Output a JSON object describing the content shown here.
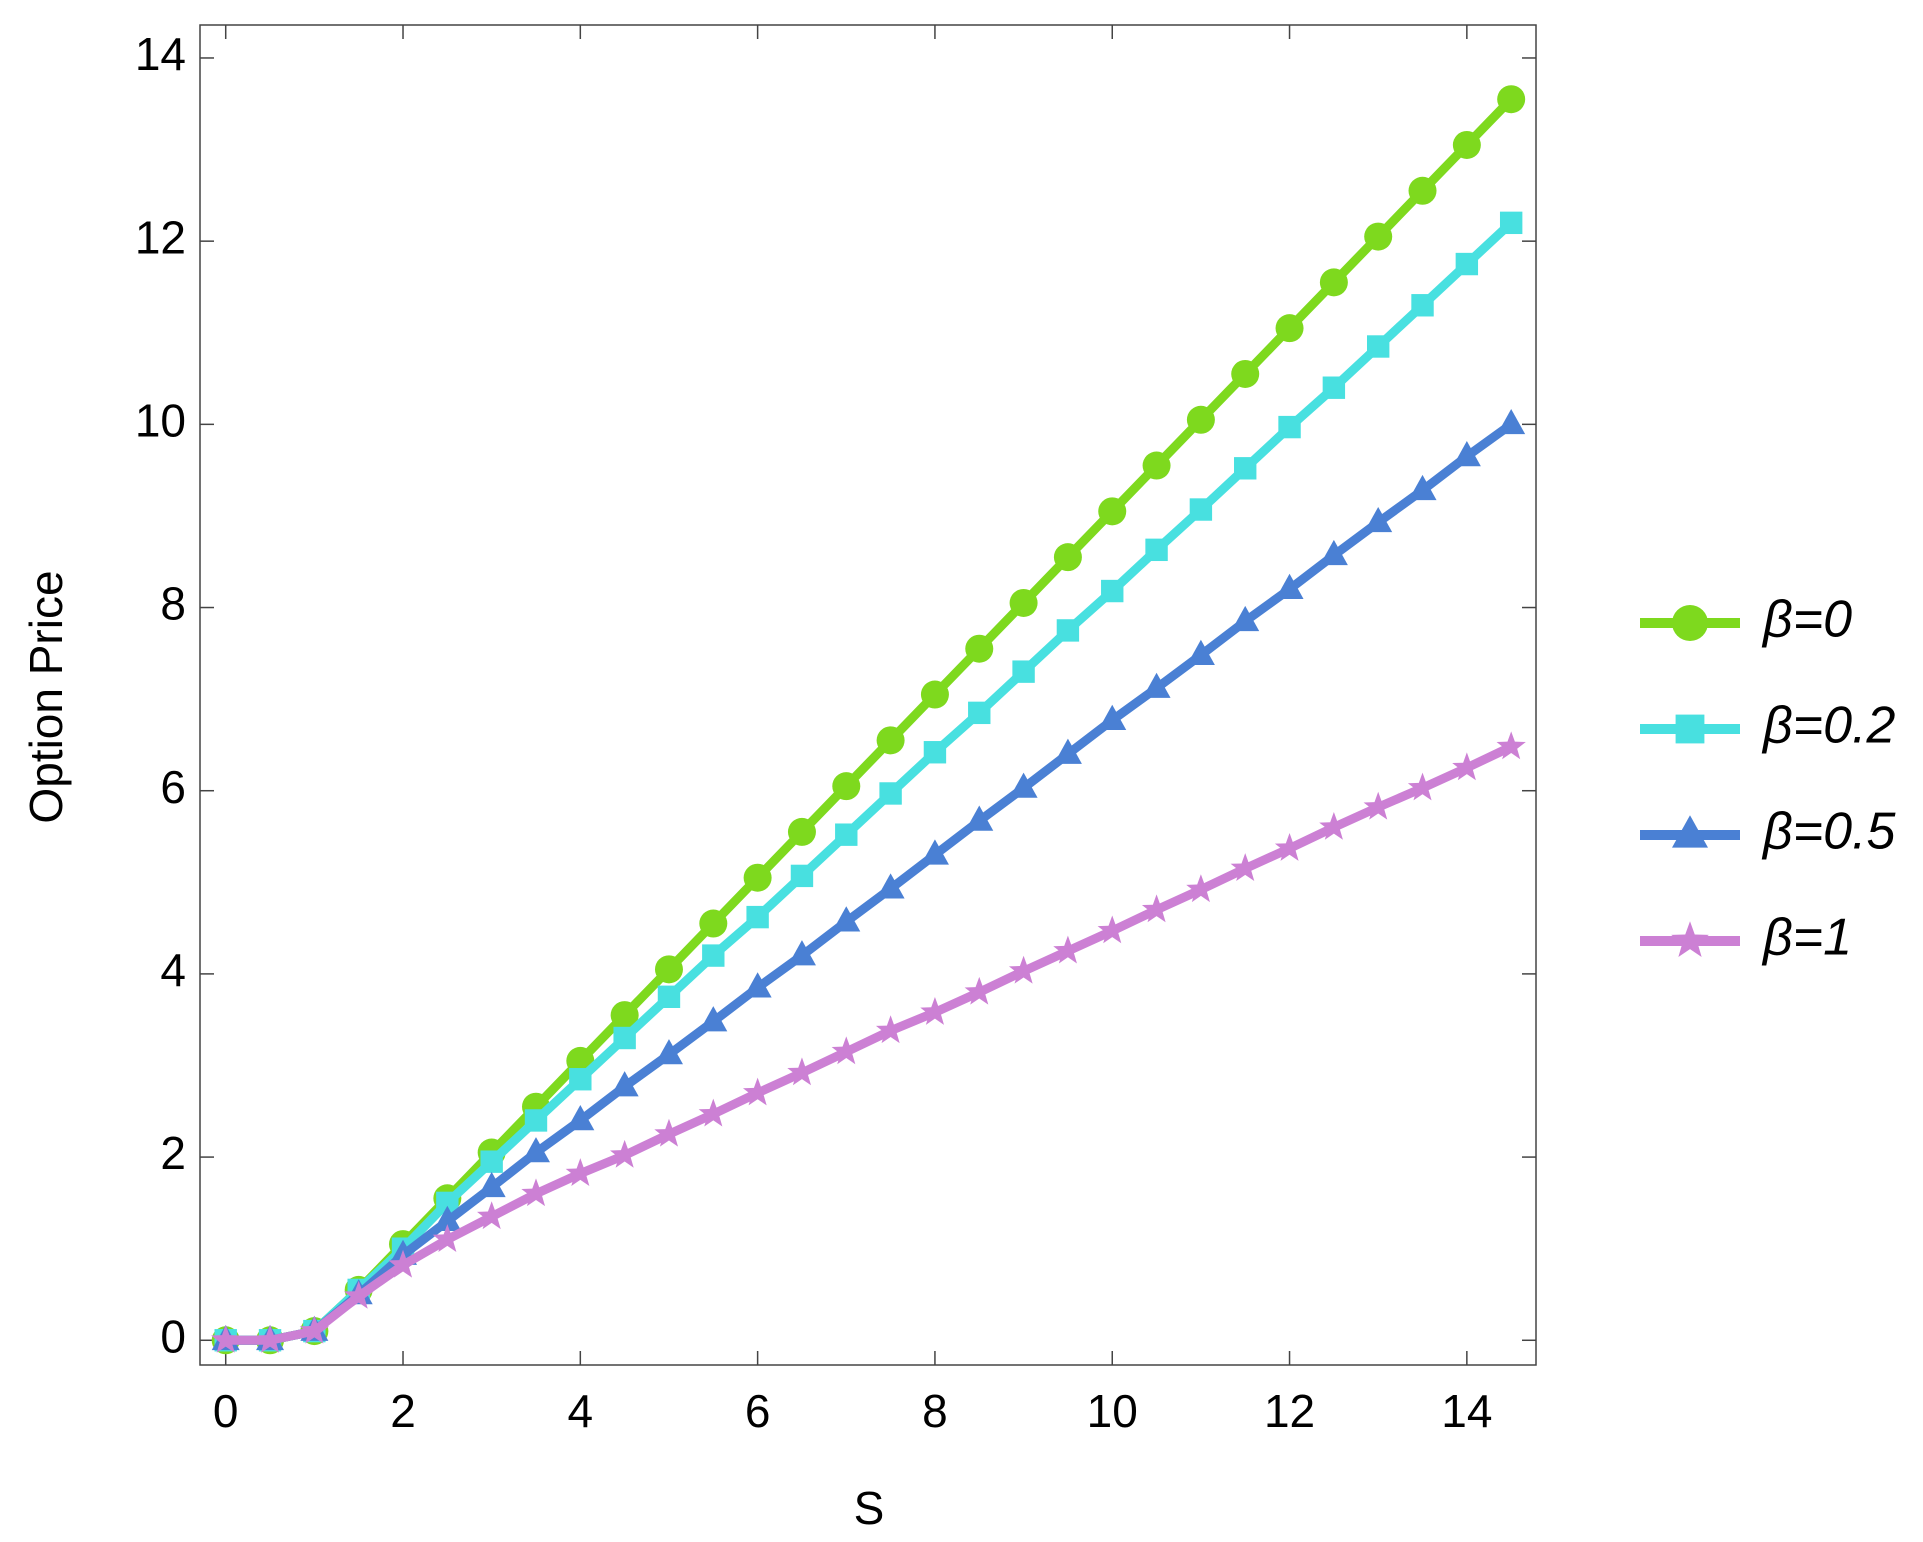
{
  "chart_data": {
    "type": "line",
    "x_label": "S",
    "y_label": "Option Price",
    "x": [
      0,
      0.5,
      1,
      1.5,
      2,
      2.5,
      3,
      3.5,
      4,
      4.5,
      5,
      5.5,
      6,
      6.5,
      7,
      7.5,
      8,
      8.5,
      9,
      9.5,
      10,
      10.5,
      11,
      11.5,
      12,
      12.5,
      13,
      13.5,
      14,
      14.5
    ],
    "series": [
      {
        "name": "β=0",
        "color": "#7ed91e",
        "marker": "circle",
        "values": [
          0,
          0,
          0.1,
          0.55,
          1.05,
          1.55,
          2.05,
          2.55,
          3.05,
          3.55,
          4.05,
          4.55,
          5.05,
          5.55,
          6.05,
          6.55,
          7.05,
          7.55,
          8.05,
          8.55,
          9.05,
          9.55,
          10.05,
          10.55,
          11.05,
          11.55,
          12.05,
          12.55,
          13.05,
          13.55
        ]
      },
      {
        "name": "β=0.2",
        "color": "#48e0e0",
        "marker": "square",
        "values": [
          0,
          0,
          0.1,
          0.55,
          1.0,
          1.5,
          1.95,
          2.4,
          2.85,
          3.3,
          3.75,
          4.2,
          4.62,
          5.07,
          5.52,
          5.97,
          6.42,
          6.85,
          7.3,
          7.75,
          8.18,
          8.63,
          9.07,
          9.52,
          9.97,
          10.4,
          10.85,
          11.3,
          11.75,
          12.2
        ]
      },
      {
        "name": "β=0.5",
        "color": "#4a80d4",
        "marker": "triangle",
        "values": [
          0,
          0,
          0.1,
          0.5,
          0.93,
          1.3,
          1.67,
          2.05,
          2.4,
          2.77,
          3.12,
          3.48,
          3.85,
          4.2,
          4.57,
          4.93,
          5.3,
          5.67,
          6.03,
          6.4,
          6.77,
          7.12,
          7.48,
          7.85,
          8.2,
          8.57,
          8.93,
          9.28,
          9.65,
          10.0
        ]
      },
      {
        "name": "β=1",
        "color": "#cc80d4",
        "marker": "star",
        "values": [
          0,
          0,
          0.1,
          0.48,
          0.82,
          1.1,
          1.35,
          1.6,
          1.82,
          2.02,
          2.25,
          2.47,
          2.7,
          2.92,
          3.15,
          3.38,
          3.58,
          3.8,
          4.03,
          4.25,
          4.47,
          4.7,
          4.92,
          5.15,
          5.37,
          5.6,
          5.82,
          6.03,
          6.25,
          6.48
        ]
      }
    ],
    "xlim": [
      -0.29,
      14.78
    ],
    "ylim": [
      -0.27,
      14.36
    ],
    "xticks": [
      0,
      2,
      4,
      6,
      8,
      10,
      12,
      14
    ],
    "yticks": [
      0,
      2,
      4,
      6,
      8,
      10,
      12,
      14
    ],
    "legend": "right"
  }
}
